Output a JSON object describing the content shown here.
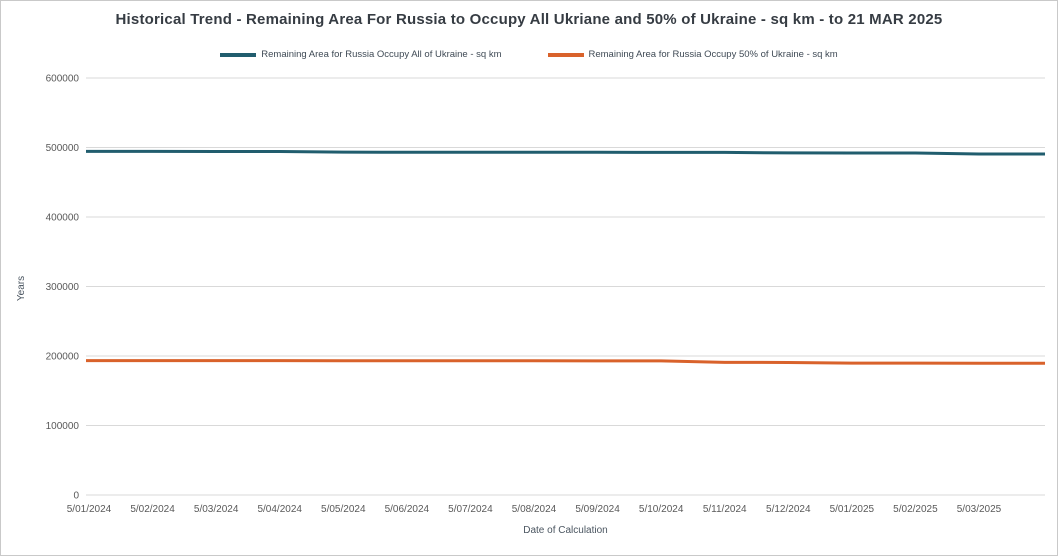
{
  "chart_data": {
    "type": "line",
    "title": "Historical Trend - Remaining Area For Russia to Occupy All Ukriane and 50% of Ukraine - sq km - to 21 MAR 2025",
    "xlabel": "Date of Calculation",
    "ylabel": "Years",
    "categories": [
      "5/01/2024",
      "5/02/2024",
      "5/03/2024",
      "5/04/2024",
      "5/05/2024",
      "5/06/2024",
      "5/07/2024",
      "5/08/2024",
      "5/09/2024",
      "5/10/2024",
      "5/11/2024",
      "5/12/2024",
      "5/01/2025",
      "5/02/2025",
      "5/03/2025"
    ],
    "series": [
      {
        "name": "Remaining Area for Russia Occupy All of Ukraine - sq km",
        "color": "#215d6e",
        "values": [
          494500,
          494400,
          494300,
          494200,
          493300,
          493200,
          493200,
          493100,
          493100,
          493000,
          492900,
          492200,
          492100,
          492000,
          490600
        ]
      },
      {
        "name": "Remaining Area for Russia Occupy 50% of Ukraine - sq km",
        "color": "#d9622b",
        "values": [
          193400,
          193400,
          193300,
          193300,
          193200,
          193200,
          193100,
          193100,
          193000,
          193000,
          190800,
          190700,
          189800,
          189700,
          189600
        ]
      }
    ],
    "ylim": [
      0,
      600000
    ],
    "yticks": [
      0,
      100000,
      200000,
      300000,
      400000,
      500000,
      600000
    ],
    "grid": "horizontal",
    "gridline_color": "#d9d9d9",
    "tick_label_color": "#595959",
    "legend_position": "top",
    "lines_extend_to_plot_edges": true
  }
}
